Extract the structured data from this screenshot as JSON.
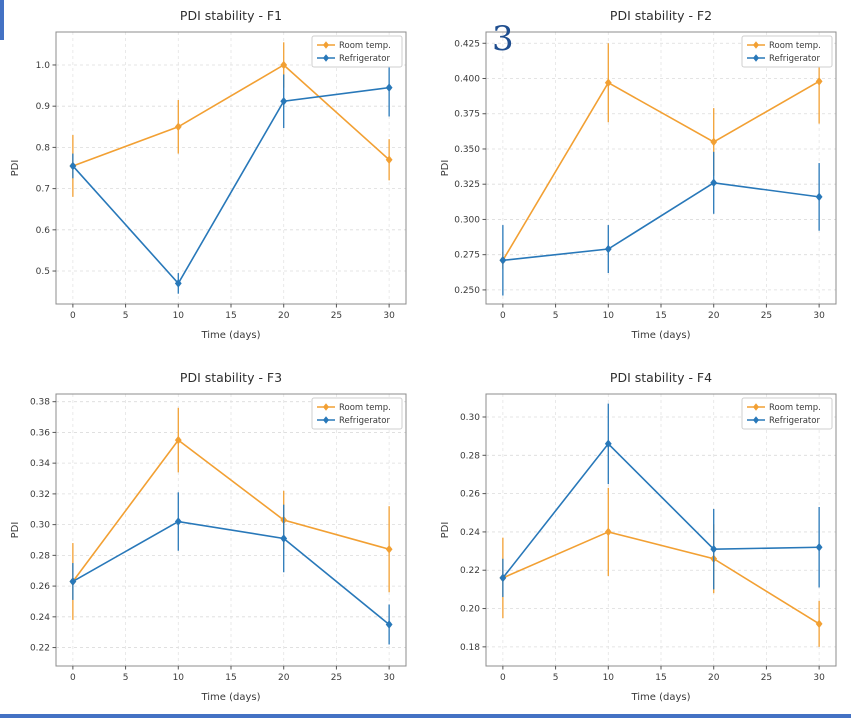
{
  "page": {
    "annotation": "3",
    "annotation_color": "#1f4e8f",
    "border_color": "#4472c4"
  },
  "chart_data": [
    {
      "type": "line",
      "title": "PDI stability - F1",
      "xlabel": "Time (days)",
      "ylabel": "PDI",
      "grid": true,
      "legend_position": "upper right",
      "x": [
        0,
        10,
        20,
        30
      ],
      "xticks": [
        0,
        5,
        10,
        15,
        20,
        25,
        30
      ],
      "xlim": [
        -1.6,
        31.6
      ],
      "ylim": [
        0.42,
        1.08
      ],
      "yticks": [
        0.5,
        0.6,
        0.7,
        0.8,
        0.9,
        1.0
      ],
      "ytick_decimals": 1,
      "series": [
        {
          "name": "Room temp.",
          "color": "#f2a033",
          "values": [
            0.755,
            0.85,
            1.0,
            0.77
          ],
          "yerr": [
            0.075,
            0.065,
            0.055,
            0.05
          ]
        },
        {
          "name": "Refrigerator",
          "color": "#2878b9",
          "values": [
            0.755,
            0.47,
            0.912,
            0.945
          ],
          "yerr": [
            0.03,
            0.025,
            0.065,
            0.07
          ]
        }
      ]
    },
    {
      "type": "line",
      "title": "PDI stability - F2",
      "xlabel": "Time (days)",
      "ylabel": "PDI",
      "grid": true,
      "legend_position": "upper right",
      "x": [
        0,
        10,
        20,
        30
      ],
      "xticks": [
        0,
        5,
        10,
        15,
        20,
        25,
        30
      ],
      "xlim": [
        -1.6,
        31.6
      ],
      "ylim": [
        0.24,
        0.433
      ],
      "yticks": [
        0.25,
        0.275,
        0.3,
        0.325,
        0.35,
        0.375,
        0.4,
        0.425
      ],
      "ytick_decimals": 3,
      "series": [
        {
          "name": "Room temp.",
          "color": "#f2a033",
          "values": [
            0.271,
            0.397,
            0.355,
            0.398
          ],
          "yerr": [
            0.006,
            0.028,
            0.024,
            0.03
          ]
        },
        {
          "name": "Refrigerator",
          "color": "#2878b9",
          "values": [
            0.271,
            0.279,
            0.326,
            0.316
          ],
          "yerr": [
            0.025,
            0.017,
            0.022,
            0.024
          ]
        }
      ]
    },
    {
      "type": "line",
      "title": "PDI stability - F3",
      "xlabel": "Time (days)",
      "ylabel": "PDI",
      "grid": true,
      "legend_position": "upper right",
      "x": [
        0,
        10,
        20,
        30
      ],
      "xticks": [
        0,
        5,
        10,
        15,
        20,
        25,
        30
      ],
      "xlim": [
        -1.6,
        31.6
      ],
      "ylim": [
        0.208,
        0.385
      ],
      "yticks": [
        0.22,
        0.24,
        0.26,
        0.28,
        0.3,
        0.32,
        0.34,
        0.36,
        0.38
      ],
      "ytick_decimals": 2,
      "series": [
        {
          "name": "Room temp.",
          "color": "#f2a033",
          "values": [
            0.263,
            0.355,
            0.303,
            0.284
          ],
          "yerr": [
            0.025,
            0.021,
            0.019,
            0.028
          ]
        },
        {
          "name": "Refrigerator",
          "color": "#2878b9",
          "values": [
            0.263,
            0.302,
            0.291,
            0.235
          ],
          "yerr": [
            0.012,
            0.019,
            0.022,
            0.013
          ]
        }
      ]
    },
    {
      "type": "line",
      "title": "PDI stability - F4",
      "xlabel": "Time (days)",
      "ylabel": "PDI",
      "grid": true,
      "legend_position": "upper right",
      "x": [
        0,
        10,
        20,
        30
      ],
      "xticks": [
        0,
        5,
        10,
        15,
        20,
        25,
        30
      ],
      "xlim": [
        -1.6,
        31.6
      ],
      "ylim": [
        0.17,
        0.312
      ],
      "yticks": [
        0.18,
        0.2,
        0.22,
        0.24,
        0.26,
        0.28,
        0.3
      ],
      "ytick_decimals": 2,
      "series": [
        {
          "name": "Room temp.",
          "color": "#f2a033",
          "values": [
            0.216,
            0.24,
            0.226,
            0.192
          ],
          "yerr": [
            0.021,
            0.023,
            0.018,
            0.012
          ]
        },
        {
          "name": "Refrigerator",
          "color": "#2878b9",
          "values": [
            0.216,
            0.286,
            0.231,
            0.232
          ],
          "yerr": [
            0.01,
            0.021,
            0.021,
            0.021
          ]
        }
      ]
    }
  ]
}
